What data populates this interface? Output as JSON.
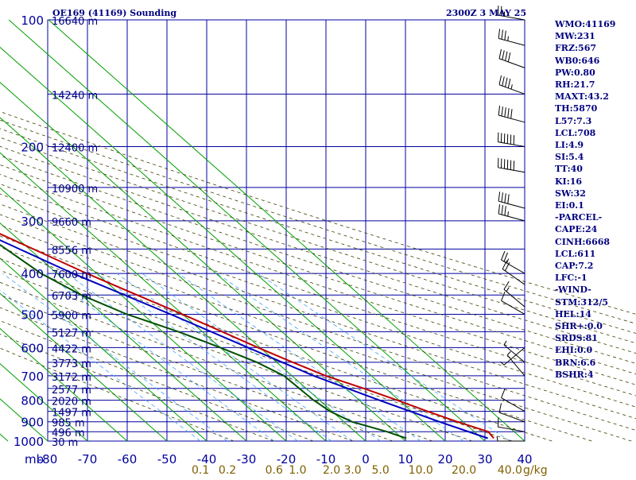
{
  "header": {
    "station_title": "OE169 (41169) Sounding",
    "valid_time": "2300Z  3 MAY 25"
  },
  "indices": [
    "WMO:41169",
    "MW:231",
    "FRZ:567",
    "WB0:646",
    "PW:0.80",
    "RH:21.7",
    "MAXT:43.2",
    "TH:5870",
    "L57:7.3",
    "LCL:708",
    "LI:4.9",
    "SI:5.4",
    "TT:40",
    "KI:16",
    "SW:32",
    "EI:0.1",
    "-PARCEL-",
    "CAPE:24",
    "CINH:6668",
    "LCL:611",
    "CAP:7.2",
    "LFC:-1",
    "-WIND-",
    "STM:312/5",
    "HEL:14",
    "SHR+:0.0",
    "SRDS:81",
    "EHI:0.0",
    "BRN:6.6",
    "BSHR:4"
  ],
  "chart_data": {
    "type": "line",
    "title": "OE169 (41169) Sounding",
    "xlabel": "",
    "ylabel": "mb",
    "xlim": [
      -80,
      40
    ],
    "y_scale": "log",
    "ylim": [
      1000,
      100
    ],
    "grid": true,
    "pressure_ticks": [
      100,
      200,
      300,
      400,
      500,
      600,
      700,
      800,
      900,
      1000
    ],
    "pressure_tick_labels": [
      "100",
      "200",
      "300",
      "400",
      "500",
      "600",
      "700",
      "800",
      "900",
      "1000"
    ],
    "pressure_axis_unit": "mb",
    "temp_ticks": [
      -80,
      -70,
      -60,
      -50,
      -40,
      -30,
      -20,
      -10,
      0,
      10,
      20,
      30,
      40
    ],
    "temp_tick_labels": [
      "-80",
      "-70",
      "-60",
      "-50",
      "-40",
      "-30",
      "-20",
      "-10",
      "0",
      "10",
      "20",
      "30",
      "40"
    ],
    "mixing_ratio_unit": "g/kg",
    "mixing_ratio_labels": [
      {
        "value": 0.1,
        "text": "0.1"
      },
      {
        "value": 0.2,
        "text": "0.2"
      },
      {
        "value": 0.6,
        "text": "0.6"
      },
      {
        "value": 1.0,
        "text": "1.0"
      },
      {
        "value": 2.0,
        "text": "2.0"
      },
      {
        "value": 3.0,
        "text": "3.0"
      },
      {
        "value": 5.0,
        "text": "5.0"
      },
      {
        "value": 10.0,
        "text": "10.0"
      },
      {
        "value": 20.0,
        "text": "20.0"
      },
      {
        "value": 40.0,
        "text": "40.0"
      }
    ],
    "height_labels": [
      {
        "p": 100,
        "text": "16640 m"
      },
      {
        "p": 150,
        "text": "14240 m"
      },
      {
        "p": 200,
        "text": "12400 m"
      },
      {
        "p": 250,
        "text": "10900 m"
      },
      {
        "p": 300,
        "text": "9660 m"
      },
      {
        "p": 350,
        "text": "8556 m"
      },
      {
        "p": 400,
        "text": "7600 m"
      },
      {
        "p": 450,
        "text": "6703 m"
      },
      {
        "p": 500,
        "text": "5900 m"
      },
      {
        "p": 550,
        "text": "5127 m"
      },
      {
        "p": 600,
        "text": "4422 m"
      },
      {
        "p": 650,
        "text": "3773 m"
      },
      {
        "p": 700,
        "text": "3172 m"
      },
      {
        "p": 750,
        "text": "2577 m"
      },
      {
        "p": 800,
        "text": "2020 m"
      },
      {
        "p": 850,
        "text": "1497 m"
      },
      {
        "p": 900,
        "text": "985 m"
      },
      {
        "p": 950,
        "text": "496 m"
      },
      {
        "p": 1000,
        "text": "30 m"
      }
    ],
    "series": [
      {
        "name": "",
        "role": "temperature",
        "color": "#c00000",
        "points": [
          [
            100,
            -81
          ],
          [
            150,
            -62
          ],
          [
            200,
            -47
          ],
          [
            250,
            -44
          ],
          [
            300,
            -36.5
          ],
          [
            350,
            -29
          ],
          [
            400,
            -22.5
          ],
          [
            450,
            -16
          ],
          [
            500,
            -10
          ],
          [
            550,
            -5
          ],
          [
            600,
            -0.5
          ],
          [
            650,
            4
          ],
          [
            700,
            8.5
          ],
          [
            750,
            14.5
          ],
          [
            800,
            19.5
          ],
          [
            850,
            24
          ],
          [
            900,
            28.5
          ],
          [
            950,
            33.5
          ],
          [
            985,
            33
          ]
        ]
      },
      {
        "name": "",
        "role": "dewpoint",
        "color": "#005000",
        "points": [
          [
            150,
            -84
          ],
          [
            200,
            -80
          ],
          [
            250,
            -49
          ],
          [
            300,
            -38
          ],
          [
            400,
            -34
          ],
          [
            450,
            -30
          ],
          [
            500,
            -24
          ],
          [
            550,
            -16
          ],
          [
            600,
            -10
          ],
          [
            650,
            -5
          ],
          [
            700,
            -2
          ],
          [
            800,
            -1.5
          ],
          [
            850,
            -0.5
          ],
          [
            900,
            2
          ],
          [
            950,
            8
          ],
          [
            985,
            11
          ]
        ]
      },
      {
        "name": "",
        "role": "parcel",
        "color": "#0000c0",
        "points": [
          [
            150,
            -84
          ],
          [
            200,
            -68
          ],
          [
            250,
            -53
          ],
          [
            300,
            -40
          ],
          [
            400,
            -26
          ],
          [
            500,
            -13
          ],
          [
            600,
            -3
          ],
          [
            700,
            5.5
          ],
          [
            800,
            15
          ],
          [
            900,
            24
          ],
          [
            985,
            31.5
          ]
        ]
      }
    ],
    "wind_barbs": [
      {
        "p": 100,
        "dir": 280,
        "spd": 25
      },
      {
        "p": 115,
        "dir": 285,
        "spd": 35
      },
      {
        "p": 130,
        "dir": 290,
        "spd": 40
      },
      {
        "p": 150,
        "dir": 290,
        "spd": 45
      },
      {
        "p": 175,
        "dir": 285,
        "spd": 50
      },
      {
        "p": 200,
        "dir": 280,
        "spd": 60
      },
      {
        "p": 230,
        "dir": 280,
        "spd": 60
      },
      {
        "p": 280,
        "dir": 285,
        "spd": 40
      },
      {
        "p": 300,
        "dir": 285,
        "spd": 35
      },
      {
        "p": 400,
        "dir": 300,
        "spd": 25
      },
      {
        "p": 425,
        "dir": 305,
        "spd": 20
      },
      {
        "p": 480,
        "dir": 310,
        "spd": 15
      },
      {
        "p": 500,
        "dir": 300,
        "spd": 10
      },
      {
        "p": 600,
        "dir": 230,
        "spd": 5
      },
      {
        "p": 650,
        "dir": 310,
        "spd": 5
      },
      {
        "p": 700,
        "dir": 320,
        "spd": 5
      },
      {
        "p": 850,
        "dir": 300,
        "spd": 10
      },
      {
        "p": 900,
        "dir": 290,
        "spd": 10
      },
      {
        "p": 950,
        "dir": 280,
        "spd": 10
      },
      {
        "p": 1000,
        "dir": 270,
        "spd": 5
      }
    ]
  }
}
